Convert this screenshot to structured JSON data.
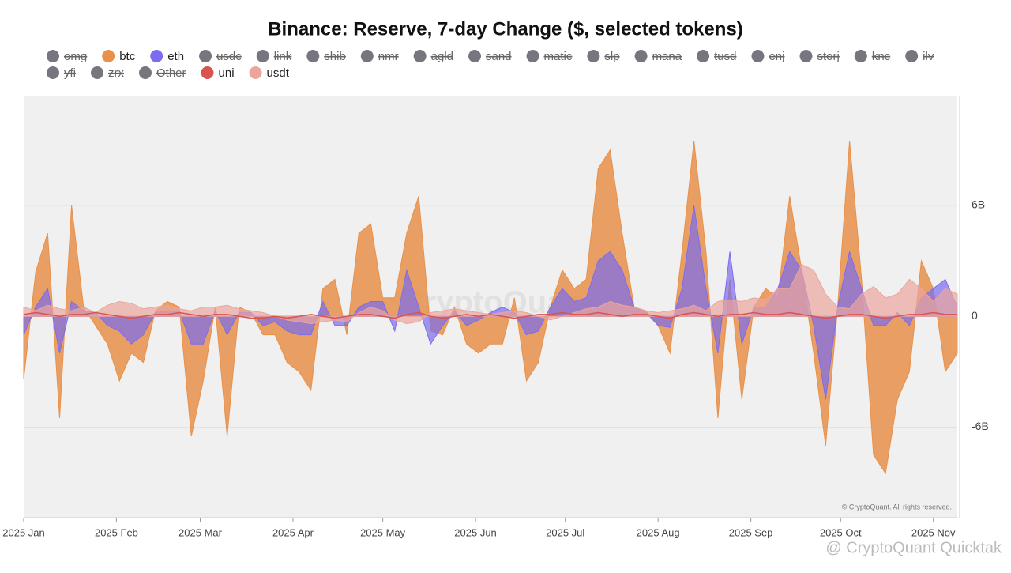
{
  "chart_data": {
    "type": "area",
    "title": "Binance: Reserve, 7-day Change ($, selected tokens)",
    "watermark": "CryptoQuant",
    "credit": "© CryptoQuant. All rights reserved.",
    "footer": "@ CryptoQuant Quicktak",
    "x": [
      0,
      4,
      8,
      12,
      16,
      20,
      24,
      28,
      32,
      36,
      40,
      44,
      48,
      52,
      56,
      60,
      64,
      68,
      72,
      76,
      80,
      84,
      88,
      92,
      96,
      100,
      104,
      108,
      112,
      116,
      120,
      124,
      128,
      132,
      136,
      140,
      144,
      148,
      152,
      156,
      160,
      164,
      168,
      172,
      176,
      180,
      184,
      188,
      192,
      196,
      200,
      204,
      208,
      212,
      216,
      220,
      224,
      228,
      232,
      236,
      240,
      244,
      248,
      252,
      256,
      260,
      264,
      268,
      272,
      276,
      280,
      284,
      288,
      292,
      296,
      300,
      304,
      308,
      312
    ],
    "xlim": [
      0,
      312
    ],
    "xticks": [
      {
        "value": 0,
        "label": "2025 Jan"
      },
      {
        "value": 31,
        "label": "2025 Feb"
      },
      {
        "value": 59,
        "label": "2025 Mar"
      },
      {
        "value": 90,
        "label": "2025 Apr"
      },
      {
        "value": 120,
        "label": "2025 May"
      },
      {
        "value": 151,
        "label": "2025 Jun"
      },
      {
        "value": 181,
        "label": "2025 Jul"
      },
      {
        "value": 212,
        "label": "2025 Aug"
      },
      {
        "value": 243,
        "label": "2025 Sep"
      },
      {
        "value": 273,
        "label": "2025 Oct"
      },
      {
        "value": 304,
        "label": "2025 Nov"
      }
    ],
    "ylim": [
      -10.9,
      11.9
    ],
    "yticks": [
      {
        "value": -6,
        "label": "-6B"
      },
      0,
      {
        "value": 6,
        "label": "6B"
      }
    ],
    "y_axis_side": "right",
    "grid": true,
    "series": [
      {
        "name": "omg",
        "visible": false
      },
      {
        "name": "btc",
        "color": "#e8914a",
        "visible": true,
        "values": [
          -3.4,
          2.4,
          4.5,
          -5.5,
          6.0,
          0.5,
          -0.5,
          -1.5,
          -3.5,
          -2.0,
          -2.5,
          0.3,
          0.8,
          0.5,
          -6.5,
          -3.5,
          0.5,
          -6.5,
          0.5,
          0.2,
          -1.0,
          -1.0,
          -2.5,
          -3.0,
          -4.0,
          1.5,
          2.0,
          -1.0,
          4.5,
          5.0,
          1.0,
          1.0,
          4.5,
          6.5,
          -0.8,
          -1.0,
          0.5,
          -1.5,
          -2.0,
          -1.5,
          -1.5,
          1.0,
          -3.5,
          -2.5,
          0.5,
          2.5,
          1.5,
          2.0,
          8.0,
          9.0,
          4.5,
          0.5,
          0.3,
          -0.5,
          -2.0,
          3.5,
          9.5,
          3.5,
          -5.5,
          2.0,
          -4.5,
          0.5,
          1.5,
          1.0,
          6.5,
          2.5,
          -2.0,
          -7.0,
          0.5,
          9.5,
          2.0,
          -7.5,
          -8.5,
          -4.5,
          -3.0,
          3.0,
          1.5,
          -3.0,
          -2.0
        ]
      },
      {
        "name": "eth",
        "color": "#7b6cf0",
        "visible": true,
        "values": [
          -1.0,
          0.5,
          1.5,
          -2.0,
          0.8,
          0.3,
          0.2,
          -0.5,
          -0.8,
          -1.5,
          -1.0,
          0.2,
          0.3,
          0.3,
          -1.5,
          -1.5,
          0.3,
          -1.0,
          0.2,
          0.2,
          -0.5,
          -0.3,
          -0.8,
          -1.0,
          -1.0,
          0.8,
          -0.5,
          -0.5,
          0.5,
          0.8,
          0.8,
          -0.8,
          2.5,
          0.5,
          -1.5,
          -0.5,
          0.3,
          -0.5,
          -0.2,
          0.2,
          0.5,
          0.2,
          -1.0,
          -0.8,
          0.5,
          1.5,
          0.8,
          1.0,
          3.0,
          3.5,
          2.5,
          0.5,
          0.2,
          -0.5,
          -0.6,
          1.5,
          6.0,
          1.5,
          -2.0,
          3.5,
          -1.5,
          0.5,
          0.5,
          1.5,
          3.5,
          2.5,
          -0.5,
          -4.5,
          0.5,
          3.5,
          1.5,
          -0.5,
          -0.5,
          0.2,
          -0.5,
          1.0,
          1.5,
          2.0,
          0.5
        ]
      },
      {
        "name": "usdc",
        "visible": false
      },
      {
        "name": "link",
        "visible": false
      },
      {
        "name": "shib",
        "visible": false
      },
      {
        "name": "nmr",
        "visible": false
      },
      {
        "name": "agld",
        "visible": false
      },
      {
        "name": "sand",
        "visible": false
      },
      {
        "name": "matic",
        "visible": false
      },
      {
        "name": "slp",
        "visible": false
      },
      {
        "name": "mana",
        "visible": false
      },
      {
        "name": "tusd",
        "visible": false
      },
      {
        "name": "enj",
        "visible": false
      },
      {
        "name": "storj",
        "visible": false
      },
      {
        "name": "knc",
        "visible": false
      },
      {
        "name": "ilv",
        "visible": false
      },
      {
        "name": "yfi",
        "visible": false
      },
      {
        "name": "zrx",
        "visible": false
      },
      {
        "name": "Other",
        "visible": false
      },
      {
        "name": "uni",
        "color": "#d9534f",
        "visible": true,
        "values": [
          0.1,
          0.2,
          0.1,
          0.0,
          0.1,
          0.1,
          0.2,
          0.1,
          0.0,
          -0.1,
          0.0,
          0.1,
          0.1,
          0.2,
          0.1,
          0.0,
          0.1,
          0.1,
          0.0,
          -0.1,
          -0.1,
          0.0,
          -0.1,
          0.0,
          0.1,
          0.0,
          -0.1,
          0.0,
          0.1,
          0.1,
          0.0,
          -0.1,
          0.1,
          0.2,
          0.0,
          -0.1,
          0.0,
          0.1,
          0.0,
          0.1,
          0.0,
          -0.1,
          0.0,
          0.1,
          0.1,
          0.2,
          0.1,
          0.1,
          0.2,
          0.1,
          0.0,
          0.1,
          0.1,
          0.0,
          -0.1,
          0.1,
          0.2,
          0.1,
          0.0,
          0.1,
          0.1,
          0.2,
          0.1,
          0.1,
          0.2,
          0.1,
          0.0,
          -0.1,
          0.0,
          0.1,
          0.1,
          0.0,
          -0.1,
          0.0,
          0.1,
          0.1,
          0.2,
          0.1,
          0.1
        ]
      },
      {
        "name": "usdt",
        "color": "#eba59c",
        "visible": true,
        "values": [
          0.5,
          0.3,
          0.6,
          0.4,
          0.3,
          0.5,
          0.2,
          0.6,
          0.8,
          0.7,
          0.4,
          0.5,
          0.6,
          0.4,
          0.3,
          0.5,
          0.5,
          0.6,
          0.4,
          0.3,
          0.2,
          0.0,
          -0.2,
          -0.3,
          -0.4,
          -0.3,
          -0.2,
          -0.3,
          0.2,
          0.5,
          0.3,
          -0.2,
          -0.4,
          -0.3,
          0.2,
          0.3,
          0.4,
          0.3,
          0.2,
          0.1,
          0.2,
          0.3,
          0.2,
          0.0,
          -0.2,
          0.0,
          0.2,
          0.4,
          0.5,
          0.8,
          0.6,
          0.5,
          0.3,
          0.2,
          0.3,
          0.4,
          0.6,
          0.3,
          0.8,
          0.9,
          0.8,
          1.0,
          0.9,
          1.5,
          1.5,
          2.8,
          2.5,
          1.2,
          0.5,
          0.4,
          1.2,
          1.6,
          1.0,
          1.2,
          2.0,
          1.5,
          0.8,
          1.5,
          1.2
        ]
      }
    ]
  }
}
